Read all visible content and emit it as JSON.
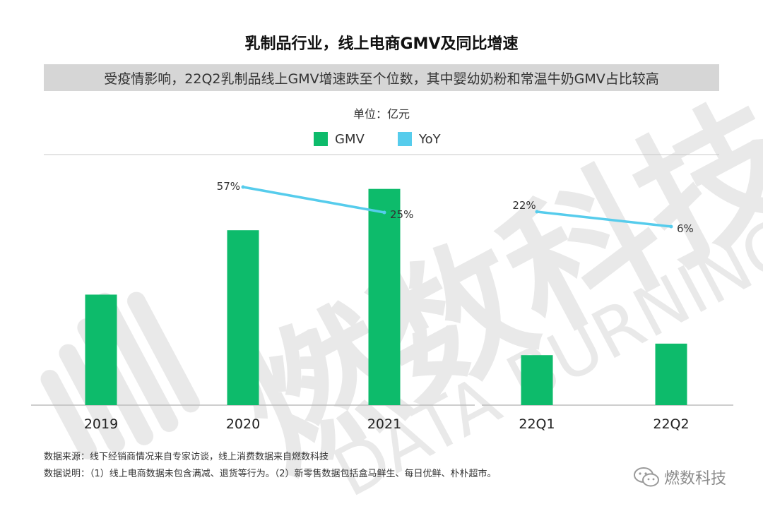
{
  "title": "乳制品行业，线上电商GMV及同比增速",
  "subtitle": "受疫情影响，22Q2乳制品线上GMV增速跌至个位数，其中婴幼奶粉和常温牛奶GMV占比较高",
  "unit": "单位：亿元",
  "colors": {
    "gmv": "#0dbb6b",
    "yoy": "#56ccec",
    "subtitle_bg": "#d6d6d6"
  },
  "legend": {
    "items": [
      {
        "label": "GMV",
        "color": "#0dbb6b"
      },
      {
        "label": "YoY",
        "color": "#56ccec"
      }
    ]
  },
  "watermark": {
    "text_cn": "燃数科技",
    "text_en": "DATA BURNING"
  },
  "chart_data": [
    {
      "type": "bar",
      "categories": [
        "2019",
        "2020",
        "2021"
      ],
      "series": [
        {
          "name": "GMV",
          "values": [
            115,
            182,
            225
          ]
        },
        {
          "name": "YoY",
          "values": [
            null,
            57,
            25
          ],
          "labels": [
            "",
            "57%",
            "25%"
          ]
        }
      ],
      "ylim": [
        0,
        260
      ]
    },
    {
      "type": "bar",
      "categories": [
        "22Q1",
        "22Q2"
      ],
      "series": [
        {
          "name": "GMV",
          "values": [
            52,
            64
          ]
        },
        {
          "name": "YoY",
          "values": [
            22,
            6
          ],
          "labels": [
            "22%",
            "6%"
          ]
        }
      ],
      "ylim": [
        0,
        260
      ]
    }
  ],
  "footnotes": {
    "source": "数据来源：线下经销商情况来自专家访谈，线上消费数据来自燃数科技",
    "note": "数据说明：（1）线上电商数据未包含满减、退货等行为。（2）新零售数据包括盒马鲜生、每日优鲜、朴朴超市。"
  },
  "brand": {
    "icon": "wechat-icon",
    "name": "燃数科技"
  }
}
